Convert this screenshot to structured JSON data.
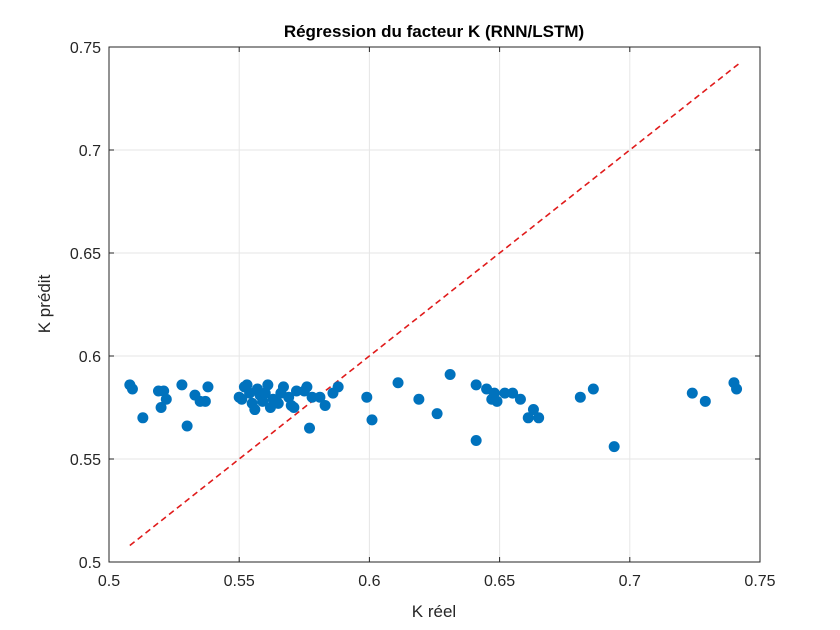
{
  "chart_data": {
    "type": "scatter",
    "title": "Régression du facteur K (RNN/LSTM)",
    "xlabel": "K réel",
    "ylabel": "K prédit",
    "xlim": [
      0.5,
      0.75
    ],
    "ylim": [
      0.5,
      0.75
    ],
    "xticks": [
      0.5,
      0.55,
      0.6,
      0.65,
      0.7,
      0.75
    ],
    "xtick_labels": [
      "0.5",
      "0.55",
      "0.6",
      "0.65",
      "0.7",
      "0.75"
    ],
    "yticks": [
      0.5,
      0.55,
      0.6,
      0.65,
      0.7,
      0.75
    ],
    "ytick_labels": [
      "0.5",
      "0.55",
      "0.6",
      "0.65",
      "0.7",
      "0.75"
    ],
    "grid": true,
    "colors": {
      "points": "#0072BD",
      "reference": "#E01B1B"
    },
    "reference_line": {
      "style": "dashed",
      "x": [
        0.508,
        0.742
      ],
      "y": [
        0.508,
        0.742
      ]
    },
    "series": [
      {
        "points": [
          [
            0.508,
            0.586
          ],
          [
            0.509,
            0.584
          ],
          [
            0.513,
            0.57
          ],
          [
            0.519,
            0.583
          ],
          [
            0.52,
            0.575
          ],
          [
            0.521,
            0.583
          ],
          [
            0.522,
            0.579
          ],
          [
            0.528,
            0.586
          ],
          [
            0.53,
            0.566
          ],
          [
            0.533,
            0.581
          ],
          [
            0.535,
            0.578
          ],
          [
            0.537,
            0.578
          ],
          [
            0.538,
            0.585
          ],
          [
            0.55,
            0.58
          ],
          [
            0.551,
            0.579
          ],
          [
            0.552,
            0.585
          ],
          [
            0.553,
            0.586
          ],
          [
            0.554,
            0.582
          ],
          [
            0.555,
            0.577
          ],
          [
            0.556,
            0.574
          ],
          [
            0.557,
            0.584
          ],
          [
            0.558,
            0.581
          ],
          [
            0.559,
            0.578
          ],
          [
            0.56,
            0.582
          ],
          [
            0.561,
            0.586
          ],
          [
            0.562,
            0.575
          ],
          [
            0.563,
            0.579
          ],
          [
            0.565,
            0.577
          ],
          [
            0.566,
            0.582
          ],
          [
            0.567,
            0.585
          ],
          [
            0.569,
            0.58
          ],
          [
            0.57,
            0.576
          ],
          [
            0.571,
            0.575
          ],
          [
            0.572,
            0.583
          ],
          [
            0.575,
            0.583
          ],
          [
            0.576,
            0.585
          ],
          [
            0.577,
            0.565
          ],
          [
            0.578,
            0.58
          ],
          [
            0.581,
            0.58
          ],
          [
            0.583,
            0.576
          ],
          [
            0.586,
            0.582
          ],
          [
            0.588,
            0.585
          ],
          [
            0.599,
            0.58
          ],
          [
            0.601,
            0.569
          ],
          [
            0.611,
            0.587
          ],
          [
            0.619,
            0.579
          ],
          [
            0.626,
            0.572
          ],
          [
            0.631,
            0.591
          ],
          [
            0.641,
            0.586
          ],
          [
            0.641,
            0.559
          ],
          [
            0.645,
            0.584
          ],
          [
            0.647,
            0.579
          ],
          [
            0.648,
            0.582
          ],
          [
            0.649,
            0.578
          ],
          [
            0.652,
            0.582
          ],
          [
            0.655,
            0.582
          ],
          [
            0.658,
            0.579
          ],
          [
            0.661,
            0.57
          ],
          [
            0.663,
            0.574
          ],
          [
            0.665,
            0.57
          ],
          [
            0.681,
            0.58
          ],
          [
            0.686,
            0.584
          ],
          [
            0.694,
            0.556
          ],
          [
            0.724,
            0.582
          ],
          [
            0.729,
            0.578
          ],
          [
            0.74,
            0.587
          ],
          [
            0.741,
            0.584
          ]
        ]
      }
    ]
  }
}
